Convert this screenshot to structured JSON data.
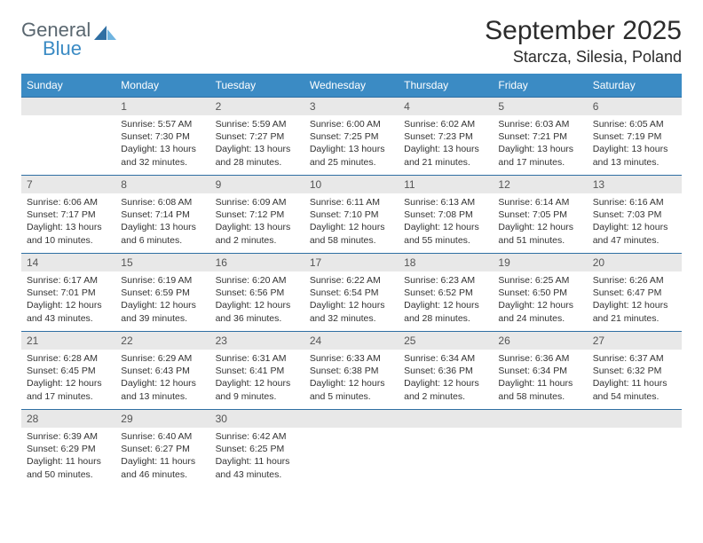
{
  "logo": {
    "general": "General",
    "blue": "Blue"
  },
  "title": "September 2025",
  "location": "Starcza, Silesia, Poland",
  "colors": {
    "header_bg": "#3b8bc4",
    "header_text": "#ffffff",
    "daynum_bg": "#e8e8e8",
    "daynum_text": "#555555",
    "week_border": "#2f6fa3",
    "body_text": "#333333"
  },
  "daysOfWeek": [
    "Sunday",
    "Monday",
    "Tuesday",
    "Wednesday",
    "Thursday",
    "Friday",
    "Saturday"
  ],
  "weeks": [
    [
      null,
      {
        "n": "1",
        "sr": "Sunrise: 5:57 AM",
        "ss": "Sunset: 7:30 PM",
        "d1": "Daylight: 13 hours",
        "d2": "and 32 minutes."
      },
      {
        "n": "2",
        "sr": "Sunrise: 5:59 AM",
        "ss": "Sunset: 7:27 PM",
        "d1": "Daylight: 13 hours",
        "d2": "and 28 minutes."
      },
      {
        "n": "3",
        "sr": "Sunrise: 6:00 AM",
        "ss": "Sunset: 7:25 PM",
        "d1": "Daylight: 13 hours",
        "d2": "and 25 minutes."
      },
      {
        "n": "4",
        "sr": "Sunrise: 6:02 AM",
        "ss": "Sunset: 7:23 PM",
        "d1": "Daylight: 13 hours",
        "d2": "and 21 minutes."
      },
      {
        "n": "5",
        "sr": "Sunrise: 6:03 AM",
        "ss": "Sunset: 7:21 PM",
        "d1": "Daylight: 13 hours",
        "d2": "and 17 minutes."
      },
      {
        "n": "6",
        "sr": "Sunrise: 6:05 AM",
        "ss": "Sunset: 7:19 PM",
        "d1": "Daylight: 13 hours",
        "d2": "and 13 minutes."
      }
    ],
    [
      {
        "n": "7",
        "sr": "Sunrise: 6:06 AM",
        "ss": "Sunset: 7:17 PM",
        "d1": "Daylight: 13 hours",
        "d2": "and 10 minutes."
      },
      {
        "n": "8",
        "sr": "Sunrise: 6:08 AM",
        "ss": "Sunset: 7:14 PM",
        "d1": "Daylight: 13 hours",
        "d2": "and 6 minutes."
      },
      {
        "n": "9",
        "sr": "Sunrise: 6:09 AM",
        "ss": "Sunset: 7:12 PM",
        "d1": "Daylight: 13 hours",
        "d2": "and 2 minutes."
      },
      {
        "n": "10",
        "sr": "Sunrise: 6:11 AM",
        "ss": "Sunset: 7:10 PM",
        "d1": "Daylight: 12 hours",
        "d2": "and 58 minutes."
      },
      {
        "n": "11",
        "sr": "Sunrise: 6:13 AM",
        "ss": "Sunset: 7:08 PM",
        "d1": "Daylight: 12 hours",
        "d2": "and 55 minutes."
      },
      {
        "n": "12",
        "sr": "Sunrise: 6:14 AM",
        "ss": "Sunset: 7:05 PM",
        "d1": "Daylight: 12 hours",
        "d2": "and 51 minutes."
      },
      {
        "n": "13",
        "sr": "Sunrise: 6:16 AM",
        "ss": "Sunset: 7:03 PM",
        "d1": "Daylight: 12 hours",
        "d2": "and 47 minutes."
      }
    ],
    [
      {
        "n": "14",
        "sr": "Sunrise: 6:17 AM",
        "ss": "Sunset: 7:01 PM",
        "d1": "Daylight: 12 hours",
        "d2": "and 43 minutes."
      },
      {
        "n": "15",
        "sr": "Sunrise: 6:19 AM",
        "ss": "Sunset: 6:59 PM",
        "d1": "Daylight: 12 hours",
        "d2": "and 39 minutes."
      },
      {
        "n": "16",
        "sr": "Sunrise: 6:20 AM",
        "ss": "Sunset: 6:56 PM",
        "d1": "Daylight: 12 hours",
        "d2": "and 36 minutes."
      },
      {
        "n": "17",
        "sr": "Sunrise: 6:22 AM",
        "ss": "Sunset: 6:54 PM",
        "d1": "Daylight: 12 hours",
        "d2": "and 32 minutes."
      },
      {
        "n": "18",
        "sr": "Sunrise: 6:23 AM",
        "ss": "Sunset: 6:52 PM",
        "d1": "Daylight: 12 hours",
        "d2": "and 28 minutes."
      },
      {
        "n": "19",
        "sr": "Sunrise: 6:25 AM",
        "ss": "Sunset: 6:50 PM",
        "d1": "Daylight: 12 hours",
        "d2": "and 24 minutes."
      },
      {
        "n": "20",
        "sr": "Sunrise: 6:26 AM",
        "ss": "Sunset: 6:47 PM",
        "d1": "Daylight: 12 hours",
        "d2": "and 21 minutes."
      }
    ],
    [
      {
        "n": "21",
        "sr": "Sunrise: 6:28 AM",
        "ss": "Sunset: 6:45 PM",
        "d1": "Daylight: 12 hours",
        "d2": "and 17 minutes."
      },
      {
        "n": "22",
        "sr": "Sunrise: 6:29 AM",
        "ss": "Sunset: 6:43 PM",
        "d1": "Daylight: 12 hours",
        "d2": "and 13 minutes."
      },
      {
        "n": "23",
        "sr": "Sunrise: 6:31 AM",
        "ss": "Sunset: 6:41 PM",
        "d1": "Daylight: 12 hours",
        "d2": "and 9 minutes."
      },
      {
        "n": "24",
        "sr": "Sunrise: 6:33 AM",
        "ss": "Sunset: 6:38 PM",
        "d1": "Daylight: 12 hours",
        "d2": "and 5 minutes."
      },
      {
        "n": "25",
        "sr": "Sunrise: 6:34 AM",
        "ss": "Sunset: 6:36 PM",
        "d1": "Daylight: 12 hours",
        "d2": "and 2 minutes."
      },
      {
        "n": "26",
        "sr": "Sunrise: 6:36 AM",
        "ss": "Sunset: 6:34 PM",
        "d1": "Daylight: 11 hours",
        "d2": "and 58 minutes."
      },
      {
        "n": "27",
        "sr": "Sunrise: 6:37 AM",
        "ss": "Sunset: 6:32 PM",
        "d1": "Daylight: 11 hours",
        "d2": "and 54 minutes."
      }
    ],
    [
      {
        "n": "28",
        "sr": "Sunrise: 6:39 AM",
        "ss": "Sunset: 6:29 PM",
        "d1": "Daylight: 11 hours",
        "d2": "and 50 minutes."
      },
      {
        "n": "29",
        "sr": "Sunrise: 6:40 AM",
        "ss": "Sunset: 6:27 PM",
        "d1": "Daylight: 11 hours",
        "d2": "and 46 minutes."
      },
      {
        "n": "30",
        "sr": "Sunrise: 6:42 AM",
        "ss": "Sunset: 6:25 PM",
        "d1": "Daylight: 11 hours",
        "d2": "and 43 minutes."
      },
      null,
      null,
      null,
      null
    ]
  ]
}
